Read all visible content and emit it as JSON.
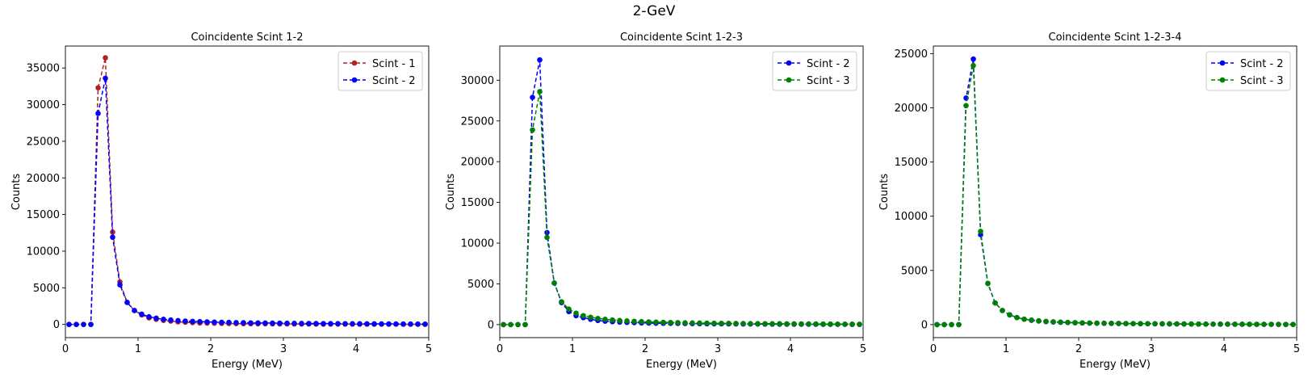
{
  "figure": {
    "suptitle": "2-GeV"
  },
  "colors": {
    "scint1": "#b22222",
    "scint2": "#0000ff",
    "scint3": "#008000"
  },
  "chart_data": [
    {
      "type": "line",
      "title": "Coincidente Scint 1-2",
      "xlabel": "Energy (MeV)",
      "ylabel": "Counts",
      "xlim": [
        0,
        5
      ],
      "ylim": [
        -1800,
        38000
      ],
      "xticks": [
        0,
        1,
        2,
        3,
        4,
        5
      ],
      "yticks": [
        0,
        5000,
        10000,
        15000,
        20000,
        25000,
        30000,
        35000
      ],
      "grid": false,
      "legend": "top-right",
      "series": [
        {
          "name": "Scint - 1",
          "color": "#b22222",
          "x": [
            0.05,
            0.15,
            0.25,
            0.35,
            0.45,
            0.55,
            0.65,
            0.75,
            0.85,
            0.95,
            1.05,
            1.15,
            1.25,
            1.35,
            1.45,
            1.55,
            1.65,
            1.75,
            1.85,
            1.95,
            2.05,
            2.15,
            2.25,
            2.35,
            2.45,
            2.55,
            2.65,
            2.75,
            2.85,
            2.95,
            3.05,
            3.15,
            3.25,
            3.35,
            3.45,
            3.55,
            3.65,
            3.75,
            3.85,
            3.95,
            4.05,
            4.15,
            4.25,
            4.35,
            4.45,
            4.55,
            4.65,
            4.75,
            4.85,
            4.95
          ],
          "values": [
            0,
            0,
            0,
            0,
            32300,
            36400,
            12600,
            5800,
            3000,
            1900,
            1300,
            900,
            700,
            550,
            450,
            350,
            300,
            250,
            200,
            180,
            160,
            140,
            120,
            110,
            100,
            90,
            85,
            80,
            75,
            70,
            65,
            60,
            55,
            50,
            48,
            45,
            42,
            40,
            38,
            36,
            34,
            32,
            30,
            28,
            26,
            25,
            24,
            22,
            20,
            18
          ]
        },
        {
          "name": "Scint - 2",
          "color": "#0000ff",
          "x": [
            0.05,
            0.15,
            0.25,
            0.35,
            0.45,
            0.55,
            0.65,
            0.75,
            0.85,
            0.95,
            1.05,
            1.15,
            1.25,
            1.35,
            1.45,
            1.55,
            1.65,
            1.75,
            1.85,
            1.95,
            2.05,
            2.15,
            2.25,
            2.35,
            2.45,
            2.55,
            2.65,
            2.75,
            2.85,
            2.95,
            3.05,
            3.15,
            3.25,
            3.35,
            3.45,
            3.55,
            3.65,
            3.75,
            3.85,
            3.95,
            4.05,
            4.15,
            4.25,
            4.35,
            4.45,
            4.55,
            4.65,
            4.75,
            4.85,
            4.95
          ],
          "values": [
            0,
            0,
            0,
            0,
            28800,
            33600,
            11900,
            5400,
            3000,
            1900,
            1400,
            1050,
            850,
            700,
            600,
            520,
            460,
            420,
            380,
            340,
            310,
            290,
            270,
            250,
            230,
            210,
            200,
            190,
            180,
            170,
            160,
            150,
            140,
            130,
            120,
            115,
            110,
            105,
            100,
            95,
            90,
            85,
            80,
            75,
            70,
            65,
            60,
            55,
            50,
            45
          ]
        }
      ]
    },
    {
      "type": "line",
      "title": "Coincidente Scint 1-2-3",
      "xlabel": "Energy (MeV)",
      "ylabel": "Counts",
      "xlim": [
        0,
        5
      ],
      "ylim": [
        -1600,
        34200
      ],
      "xticks": [
        0,
        1,
        2,
        3,
        4,
        5
      ],
      "yticks": [
        0,
        5000,
        10000,
        15000,
        20000,
        25000,
        30000
      ],
      "grid": false,
      "legend": "top-right",
      "series": [
        {
          "name": "Scint - 2",
          "color": "#0000ff",
          "x": [
            0.05,
            0.15,
            0.25,
            0.35,
            0.45,
            0.55,
            0.65,
            0.75,
            0.85,
            0.95,
            1.05,
            1.15,
            1.25,
            1.35,
            1.45,
            1.55,
            1.65,
            1.75,
            1.85,
            1.95,
            2.05,
            2.15,
            2.25,
            2.35,
            2.45,
            2.55,
            2.65,
            2.75,
            2.85,
            2.95,
            3.05,
            3.15,
            3.25,
            3.35,
            3.45,
            3.55,
            3.65,
            3.75,
            3.85,
            3.95,
            4.05,
            4.15,
            4.25,
            4.35,
            4.45,
            4.55,
            4.65,
            4.75,
            4.85,
            4.95
          ],
          "values": [
            0,
            0,
            0,
            0,
            27900,
            32500,
            11300,
            5100,
            2700,
            1600,
            1100,
            850,
            650,
            500,
            420,
            360,
            310,
            270,
            240,
            210,
            190,
            170,
            160,
            150,
            140,
            130,
            120,
            110,
            100,
            95,
            90,
            85,
            80,
            75,
            70,
            65,
            60,
            55,
            50,
            48,
            45,
            42,
            40,
            38,
            35,
            32,
            30,
            28,
            25,
            22
          ]
        },
        {
          "name": "Scint - 3",
          "color": "#008000",
          "x": [
            0.05,
            0.15,
            0.25,
            0.35,
            0.45,
            0.55,
            0.65,
            0.75,
            0.85,
            0.95,
            1.05,
            1.15,
            1.25,
            1.35,
            1.45,
            1.55,
            1.65,
            1.75,
            1.85,
            1.95,
            2.05,
            2.15,
            2.25,
            2.35,
            2.45,
            2.55,
            2.65,
            2.75,
            2.85,
            2.95,
            3.05,
            3.15,
            3.25,
            3.35,
            3.45,
            3.55,
            3.65,
            3.75,
            3.85,
            3.95,
            4.05,
            4.15,
            4.25,
            4.35,
            4.45,
            4.55,
            4.65,
            4.75,
            4.85,
            4.95
          ],
          "values": [
            0,
            0,
            0,
            0,
            23900,
            28600,
            10700,
            5100,
            2800,
            1900,
            1400,
            1100,
            900,
            750,
            650,
            570,
            500,
            450,
            400,
            360,
            330,
            300,
            280,
            260,
            240,
            220,
            200,
            190,
            180,
            170,
            160,
            150,
            140,
            130,
            120,
            115,
            110,
            105,
            100,
            95,
            90,
            85,
            80,
            75,
            70,
            65,
            60,
            55,
            50,
            45
          ]
        }
      ]
    },
    {
      "type": "line",
      "title": "Coincidente Scint 1-2-3-4",
      "xlabel": "Energy (MeV)",
      "ylabel": "Counts",
      "xlim": [
        0,
        5
      ],
      "ylim": [
        -1200,
        25700
      ],
      "xticks": [
        0,
        1,
        2,
        3,
        4,
        5
      ],
      "yticks": [
        0,
        5000,
        10000,
        15000,
        20000,
        25000
      ],
      "grid": false,
      "legend": "top-right",
      "series": [
        {
          "name": "Scint - 2",
          "color": "#0000ff",
          "x": [
            0.05,
            0.15,
            0.25,
            0.35,
            0.45,
            0.55,
            0.65,
            0.75,
            0.85,
            0.95,
            1.05,
            1.15,
            1.25,
            1.35,
            1.45,
            1.55,
            1.65,
            1.75,
            1.85,
            1.95,
            2.05,
            2.15,
            2.25,
            2.35,
            2.45,
            2.55,
            2.65,
            2.75,
            2.85,
            2.95,
            3.05,
            3.15,
            3.25,
            3.35,
            3.45,
            3.55,
            3.65,
            3.75,
            3.85,
            3.95,
            4.05,
            4.15,
            4.25,
            4.35,
            4.45,
            4.55,
            4.65,
            4.75,
            4.85,
            4.95
          ],
          "values": [
            0,
            0,
            0,
            0,
            20900,
            24500,
            8300,
            3800,
            2000,
            1300,
            900,
            650,
            500,
            400,
            330,
            280,
            240,
            210,
            190,
            170,
            150,
            140,
            130,
            120,
            110,
            100,
            95,
            90,
            85,
            80,
            75,
            70,
            65,
            60,
            55,
            50,
            48,
            45,
            42,
            40,
            38,
            35,
            32,
            30,
            28,
            25,
            22,
            20,
            18,
            15
          ]
        },
        {
          "name": "Scint - 3",
          "color": "#008000",
          "x": [
            0.05,
            0.15,
            0.25,
            0.35,
            0.45,
            0.55,
            0.65,
            0.75,
            0.85,
            0.95,
            1.05,
            1.15,
            1.25,
            1.35,
            1.45,
            1.55,
            1.65,
            1.75,
            1.85,
            1.95,
            2.05,
            2.15,
            2.25,
            2.35,
            2.45,
            2.55,
            2.65,
            2.75,
            2.85,
            2.95,
            3.05,
            3.15,
            3.25,
            3.35,
            3.45,
            3.55,
            3.65,
            3.75,
            3.85,
            3.95,
            4.05,
            4.15,
            4.25,
            4.35,
            4.45,
            4.55,
            4.65,
            4.75,
            4.85,
            4.95
          ],
          "values": [
            0,
            0,
            0,
            0,
            20200,
            23900,
            8600,
            3800,
            2000,
            1300,
            900,
            650,
            500,
            420,
            350,
            300,
            260,
            230,
            200,
            180,
            160,
            150,
            140,
            130,
            120,
            110,
            100,
            95,
            90,
            85,
            80,
            75,
            70,
            65,
            60,
            55,
            50,
            48,
            45,
            42,
            40,
            38,
            35,
            32,
            30,
            28,
            25,
            22,
            20,
            18
          ]
        }
      ]
    }
  ]
}
